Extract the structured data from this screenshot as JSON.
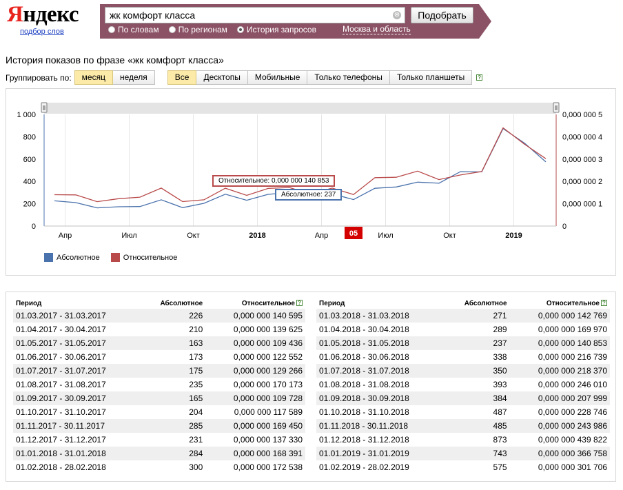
{
  "logo": {
    "brand_first": "Я",
    "brand_rest": "ндекс",
    "sub": "подбор слов"
  },
  "search": {
    "value": "жк комфорт класса",
    "clear_glyph": "⊗",
    "submit": "Подобрать",
    "modes": [
      {
        "label": "По словам",
        "selected": false
      },
      {
        "label": "По регионам",
        "selected": false
      },
      {
        "label": "История запросов",
        "selected": true
      }
    ],
    "region": "Москва и область"
  },
  "page": {
    "title": "История показов по фразе «жк комфорт класса»"
  },
  "controls": {
    "group_label": "Группировать по:",
    "grouping": [
      {
        "label": "месяц",
        "active": true
      },
      {
        "label": "неделя",
        "active": false
      }
    ],
    "devices": [
      {
        "label": "Все",
        "active": true
      },
      {
        "label": "Десктопы",
        "active": false
      },
      {
        "label": "Мобильные",
        "active": false
      },
      {
        "label": "Только телефоны",
        "active": false
      },
      {
        "label": "Только планшеты",
        "active": false
      }
    ],
    "help_glyph": "?"
  },
  "chart_data": {
    "type": "line",
    "x_tick_labels": [
      {
        "i": 0.5,
        "label": "Апр",
        "bold": false
      },
      {
        "i": 3.5,
        "label": "Июл",
        "bold": false
      },
      {
        "i": 6.5,
        "label": "Окт",
        "bold": false
      },
      {
        "i": 9.5,
        "label": "2018",
        "bold": true
      },
      {
        "i": 12.5,
        "label": "Апр",
        "bold": false
      },
      {
        "i": 15.5,
        "label": "Июл",
        "bold": false
      },
      {
        "i": 18.5,
        "label": "Окт",
        "bold": false
      },
      {
        "i": 21.5,
        "label": "2019",
        "bold": true
      }
    ],
    "highlight": {
      "i": 14,
      "label": "05"
    },
    "y_left": {
      "ticks": [
        "0",
        "200",
        "400",
        "600",
        "800",
        "1 000"
      ],
      "ylim": [
        0,
        1000
      ]
    },
    "y_right": {
      "ticks": [
        "0",
        "0,000 000 1",
        "0,000 000 2",
        "0,000 000 3",
        "0,000 000 4",
        "0,000 000 5"
      ],
      "ylim": [
        0,
        5e-07
      ]
    },
    "series": [
      {
        "name": "Абсолютное",
        "color": "#4a72ac",
        "axis": "left",
        "values": [
          226,
          210,
          163,
          173,
          175,
          235,
          165,
          204,
          285,
          231,
          284,
          300,
          271,
          289,
          237,
          338,
          350,
          393,
          384,
          487,
          485,
          873,
          743,
          575
        ]
      },
      {
        "name": "Относительное",
        "color": "#b94a4a",
        "axis": "right",
        "values": [
          1.405e-07,
          1.396e-07,
          1.094e-07,
          1.226e-07,
          1.293e-07,
          1.702e-07,
          1.097e-07,
          1.176e-07,
          1.695e-07,
          1.373e-07,
          1.684e-07,
          1.725e-07,
          1.428e-07,
          1.7e-07,
          1.409e-07,
          2.167e-07,
          2.184e-07,
          2.46e-07,
          2.08e-07,
          2.287e-07,
          2.44e-07,
          4.398e-07,
          3.668e-07,
          3.017e-07
        ]
      }
    ],
    "tooltips": {
      "relative": "Относительное: 0,000 000 140 853",
      "absolute": "Абсолютное: 237"
    }
  },
  "table": {
    "headers": {
      "period": "Период",
      "absolute": "Абсолютное",
      "relative": "Относительное"
    },
    "left": [
      [
        "01.03.2017 - 31.03.2017",
        "226",
        "0,000 000 140 595"
      ],
      [
        "01.04.2017 - 30.04.2017",
        "210",
        "0,000 000 139 625"
      ],
      [
        "01.05.2017 - 31.05.2017",
        "163",
        "0,000 000 109 436"
      ],
      [
        "01.06.2017 - 30.06.2017",
        "173",
        "0,000 000 122 552"
      ],
      [
        "01.07.2017 - 31.07.2017",
        "175",
        "0,000 000 129 266"
      ],
      [
        "01.08.2017 - 31.08.2017",
        "235",
        "0,000 000 170 173"
      ],
      [
        "01.09.2017 - 30.09.2017",
        "165",
        "0,000 000 109 728"
      ],
      [
        "01.10.2017 - 31.10.2017",
        "204",
        "0,000 000 117 589"
      ],
      [
        "01.11.2017 - 30.11.2017",
        "285",
        "0,000 000 169 450"
      ],
      [
        "01.12.2017 - 31.12.2017",
        "231",
        "0,000 000 137 330"
      ],
      [
        "01.01.2018 - 31.01.2018",
        "284",
        "0,000 000 168 391"
      ],
      [
        "01.02.2018 - 28.02.2018",
        "300",
        "0,000 000 172 538"
      ]
    ],
    "right": [
      [
        "01.03.2018 - 31.03.2018",
        "271",
        "0,000 000 142 769"
      ],
      [
        "01.04.2018 - 30.04.2018",
        "289",
        "0,000 000 169 970"
      ],
      [
        "01.05.2018 - 31.05.2018",
        "237",
        "0,000 000 140 853"
      ],
      [
        "01.06.2018 - 30.06.2018",
        "338",
        "0,000 000 216 739"
      ],
      [
        "01.07.2018 - 31.07.2018",
        "350",
        "0,000 000 218 370"
      ],
      [
        "01.08.2018 - 31.08.2018",
        "393",
        "0,000 000 246 010"
      ],
      [
        "01.09.2018 - 30.09.2018",
        "384",
        "0,000 000 207 999"
      ],
      [
        "01.10.2018 - 31.10.2018",
        "487",
        "0,000 000 228 746"
      ],
      [
        "01.11.2018 - 30.11.2018",
        "485",
        "0,000 000 243 986"
      ],
      [
        "01.12.2018 - 31.12.2018",
        "873",
        "0,000 000 439 822"
      ],
      [
        "01.01.2019 - 31.01.2019",
        "743",
        "0,000 000 366 758"
      ],
      [
        "01.02.2019 - 28.02.2019",
        "575",
        "0,000 000 301 706"
      ]
    ]
  }
}
